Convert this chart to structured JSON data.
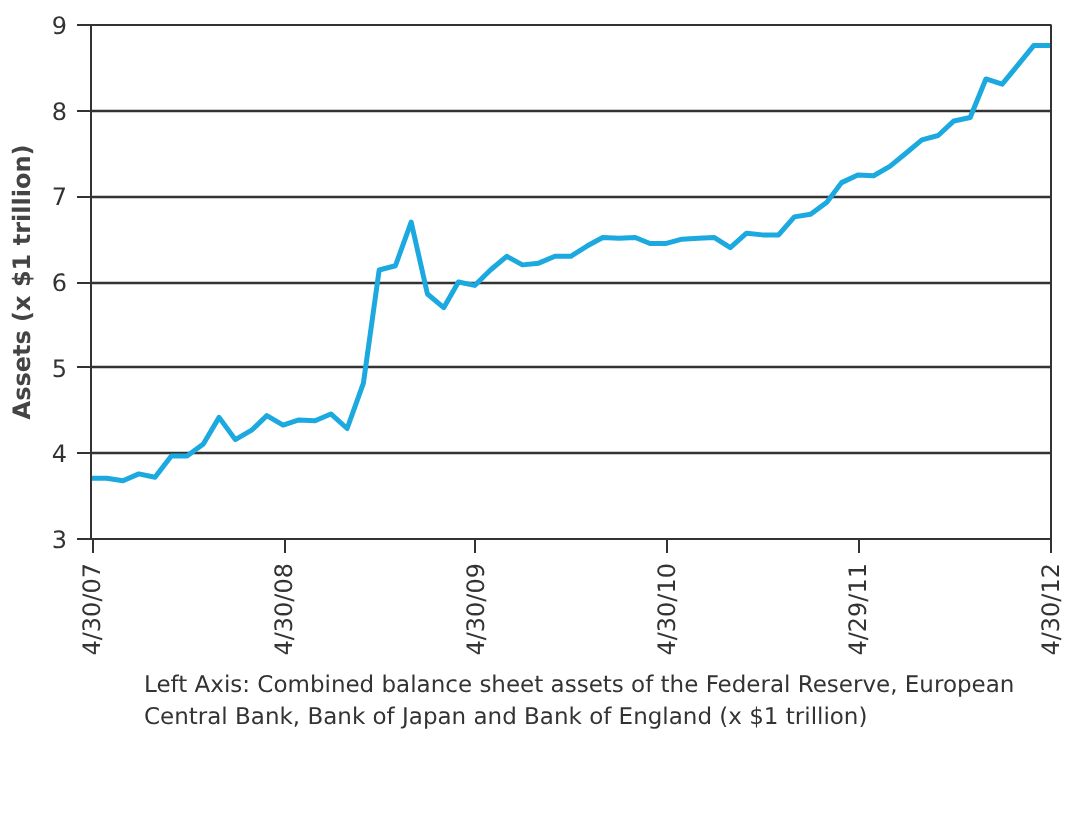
{
  "chart_data": {
    "type": "line",
    "ylabel": "Assets (x $1 trillion)",
    "x": [
      "2007-04-28",
      "2007-05-28",
      "2007-06-28",
      "2007-07-28",
      "2007-08-28",
      "2007-09-28",
      "2007-10-28",
      "2007-11-28",
      "2007-12-28",
      "2008-01-28",
      "2008-02-28",
      "2008-03-28",
      "2008-04-28",
      "2008-05-28",
      "2008-06-28",
      "2008-07-28",
      "2008-08-28",
      "2008-09-28",
      "2008-10-28",
      "2008-11-28",
      "2008-12-28",
      "2009-01-28",
      "2009-02-28",
      "2009-03-28",
      "2009-04-28",
      "2009-05-28",
      "2009-06-28",
      "2009-07-28",
      "2009-08-28",
      "2009-09-28",
      "2009-10-28",
      "2009-11-28",
      "2009-12-28",
      "2010-01-28",
      "2010-02-28",
      "2010-03-28",
      "2010-04-28",
      "2010-05-28",
      "2010-06-28",
      "2010-07-28",
      "2010-08-28",
      "2010-09-28",
      "2010-10-28",
      "2010-11-28",
      "2010-12-28",
      "2011-01-28",
      "2011-02-28",
      "2011-03-28",
      "2011-04-28",
      "2011-05-28",
      "2011-06-28",
      "2011-07-28",
      "2011-08-28",
      "2011-09-28",
      "2011-10-28",
      "2011-11-28",
      "2011-12-28",
      "2012-01-28",
      "2012-02-28",
      "2012-03-28",
      "2012-04-28"
    ],
    "series": [
      {
        "color": "#1ba9e0",
        "values": [
          3.71,
          3.71,
          3.68,
          3.76,
          3.72,
          3.97,
          3.97,
          4.11,
          4.42,
          4.16,
          4.27,
          4.44,
          4.33,
          4.39,
          4.38,
          4.46,
          4.29,
          4.82,
          6.14,
          6.19,
          6.7,
          5.86,
          5.7,
          6.0,
          5.96,
          6.14,
          6.3,
          6.2,
          6.22,
          6.3,
          6.3,
          6.42,
          6.52,
          6.51,
          6.52,
          6.45,
          6.45,
          6.5,
          6.51,
          6.52,
          6.4,
          6.57,
          6.55,
          6.55,
          6.76,
          6.79,
          6.93,
          7.16,
          7.25,
          7.24,
          7.35,
          7.5,
          7.66,
          7.71,
          7.88,
          7.92,
          8.37,
          8.31,
          8.54,
          8.76,
          8.76
        ]
      }
    ],
    "xlim": [
      "2007-04-28",
      "2012-04-30"
    ],
    "xticks": [
      {
        "value": "2007-04-30",
        "label": "4/30/07"
      },
      {
        "value": "2008-04-30",
        "label": "4/30/08"
      },
      {
        "value": "2009-04-30",
        "label": "4/30/09"
      },
      {
        "value": "2010-04-30",
        "label": "4/30/10"
      },
      {
        "value": "2011-04-29",
        "label": "4/29/11"
      },
      {
        "value": "2012-04-30",
        "label": "4/30/12"
      }
    ],
    "ylim": [
      3,
      9
    ],
    "yticks": [
      3,
      4,
      5,
      6,
      7,
      8,
      9
    ],
    "grid": "y",
    "line_style": "solid",
    "annotations": [
      "Left Axis: Combined balance sheet assets of the Federal Reserve, European Central Bank, Bank of Japan and Bank of England (x $1 trillion)"
    ]
  }
}
